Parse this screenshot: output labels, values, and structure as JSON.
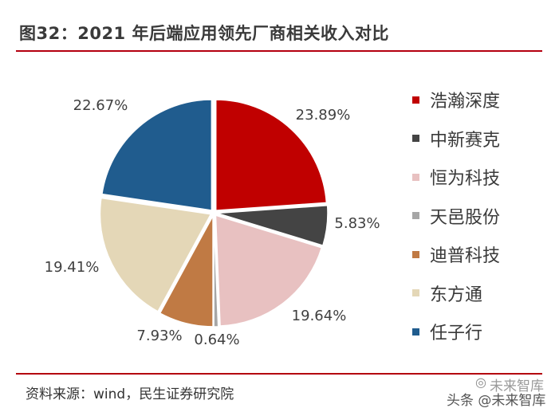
{
  "header": {
    "title": "图32：2021 年后端应用领先厂商相关收入对比"
  },
  "chart_data": {
    "type": "pie",
    "title": "",
    "start_angle_deg": 90,
    "direction": "clockwise",
    "legend_position": "right",
    "slices": [
      {
        "name": "浩瀚深度",
        "value": 23.89,
        "label": "23.89%",
        "color": "#c00000"
      },
      {
        "name": "中新赛克",
        "value": 5.83,
        "label": "5.83%",
        "color": "#444444"
      },
      {
        "name": "恒为科技",
        "value": 19.64,
        "label": "19.64%",
        "color": "#e8c1c1"
      },
      {
        "name": "天邑股份",
        "value": 0.64,
        "label": "0.64%",
        "color": "#a6a6a6"
      },
      {
        "name": "迪普科技",
        "value": 7.93,
        "label": "7.93%",
        "color": "#c07a44"
      },
      {
        "name": "东方通",
        "value": 19.41,
        "label": "19.41%",
        "color": "#e4d7b7"
      },
      {
        "name": "任子行",
        "value": 22.67,
        "label": "22.67%",
        "color": "#205c8e"
      }
    ]
  },
  "footer": {
    "source": "资料来源：wind，民生证券研究院",
    "watermark_icon": "wechat-icon",
    "watermark_top": "未来智库",
    "watermark_bottom": "头条 @未来智库"
  }
}
